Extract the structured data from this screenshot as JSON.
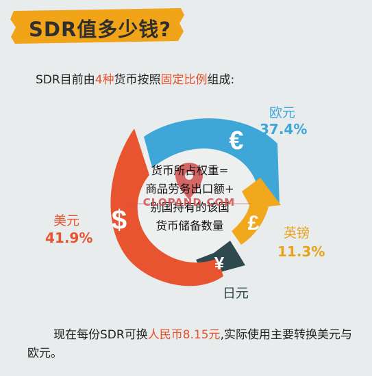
{
  "title": "SDR值多少钱?",
  "intro": {
    "prefix": "SDR目前由",
    "hl1": "4种",
    "middle": "货币按照",
    "hl2": "固定比例",
    "suffix": "组成:"
  },
  "currencies": [
    {
      "name": "欧元",
      "percent": "37.4%",
      "symbol": "€",
      "color": "#3fa6d8"
    },
    {
      "name": "英镑",
      "percent": "11.3%",
      "symbol": "£",
      "color": "#f2a81d"
    },
    {
      "name": "日元",
      "percent": "",
      "symbol": "¥",
      "color": "#2e4a4e"
    },
    {
      "name": "美元",
      "percent": "41.9%",
      "symbol": "$",
      "color": "#e8542f"
    }
  ],
  "center": {
    "line1": "货币所占权重=",
    "line2": "商品劳务出口额+",
    "line3": "别国持有的该国",
    "line4": "货币储备数量"
  },
  "watermark": "CLOPAND.COM",
  "footer": {
    "prefix": "现在每份SDR可换",
    "hl": "人民币8.15元",
    "suffix": ",实际使用主要转换美元与",
    "line2": "欧元。"
  }
}
